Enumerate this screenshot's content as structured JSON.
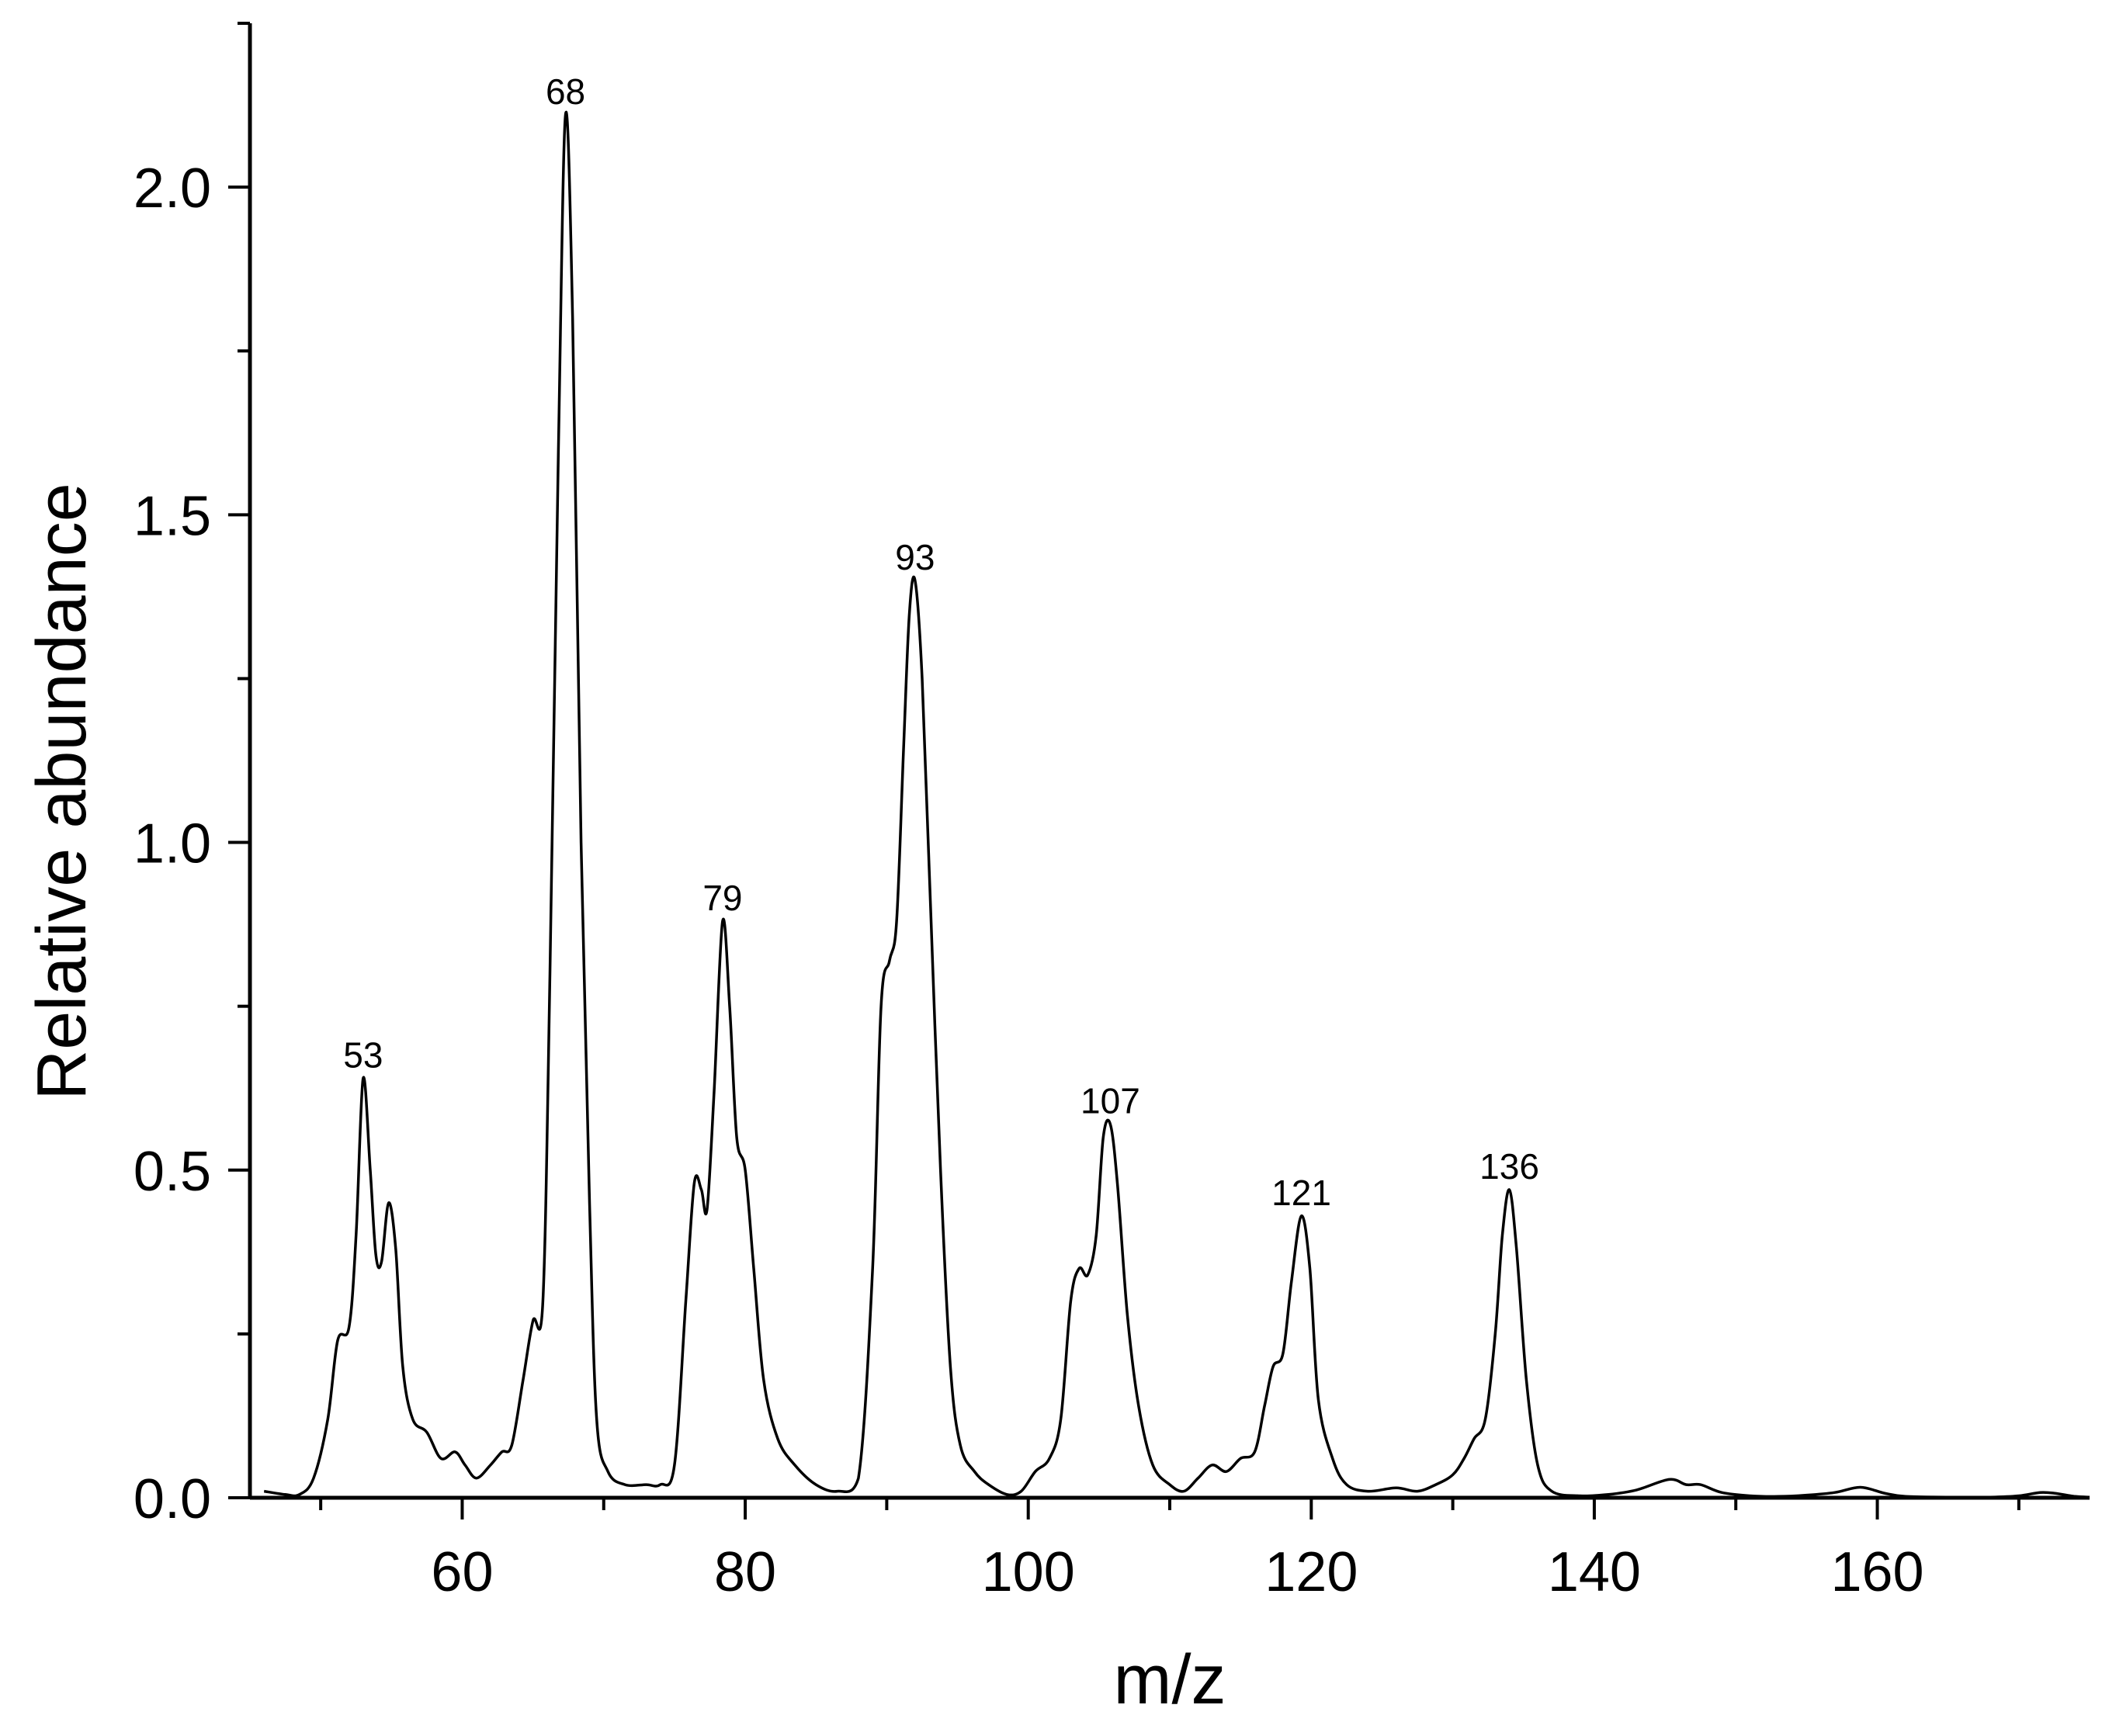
{
  "chart_data": {
    "type": "line",
    "title": "",
    "xlabel": "m/z",
    "ylabel": "Relative abundance",
    "xlim": [
      45,
      175
    ],
    "ylim": [
      0,
      2.25
    ],
    "x_major_ticks": [
      60,
      80,
      100,
      120,
      140,
      160
    ],
    "x_minor_ticks": [
      50,
      70,
      90,
      110,
      130,
      150,
      170
    ],
    "y_major_ticks": [
      0.0,
      0.5,
      1.0,
      1.5,
      2.0
    ],
    "y_minor_ticks": [
      0.25,
      0.75,
      1.25,
      1.75,
      2.25
    ],
    "x_tick_labels": [
      "60",
      "80",
      "100",
      "120",
      "140",
      "160"
    ],
    "y_tick_labels": [
      "0.0",
      "0.5",
      "1.0",
      "1.5",
      "2.0"
    ],
    "grid": false,
    "legend": "none",
    "peak_labels": [
      {
        "text": "53",
        "x": 53,
        "y": 0.64
      },
      {
        "text": "68",
        "x": 67.3,
        "y": 2.11
      },
      {
        "text": "79",
        "x": 78.4,
        "y": 0.88
      },
      {
        "text": "93",
        "x": 92.0,
        "y": 1.4
      },
      {
        "text": "107",
        "x": 105.8,
        "y": 0.57
      },
      {
        "text": "121",
        "x": 119.3,
        "y": 0.43
      },
      {
        "text": "136",
        "x": 134.0,
        "y": 0.47
      }
    ],
    "series": [
      {
        "points": [
          [
            46,
            0.01
          ],
          [
            47.5,
            0.005
          ],
          [
            48.5,
            0.005
          ],
          [
            49.5,
            0.03
          ],
          [
            50.5,
            0.12
          ],
          [
            51.2,
            0.24
          ],
          [
            52.0,
            0.26
          ],
          [
            52.5,
            0.4
          ],
          [
            53.0,
            0.64
          ],
          [
            53.5,
            0.5
          ],
          [
            53.9,
            0.37
          ],
          [
            54.3,
            0.36
          ],
          [
            54.8,
            0.45
          ],
          [
            55.3,
            0.38
          ],
          [
            55.8,
            0.2
          ],
          [
            56.5,
            0.12
          ],
          [
            57.5,
            0.1
          ],
          [
            58.5,
            0.06
          ],
          [
            59.5,
            0.07
          ],
          [
            60.2,
            0.05
          ],
          [
            61.0,
            0.03
          ],
          [
            62.0,
            0.05
          ],
          [
            62.8,
            0.07
          ],
          [
            63.5,
            0.08
          ],
          [
            64.3,
            0.18
          ],
          [
            65.0,
            0.27
          ],
          [
            65.7,
            0.3
          ],
          [
            66.2,
            0.8
          ],
          [
            66.8,
            1.6
          ],
          [
            67.3,
            2.11
          ],
          [
            67.8,
            1.8
          ],
          [
            68.4,
            1.0
          ],
          [
            69.0,
            0.45
          ],
          [
            69.5,
            0.12
          ],
          [
            70.3,
            0.04
          ],
          [
            71.5,
            0.02
          ],
          [
            73.0,
            0.02
          ],
          [
            74.0,
            0.02
          ],
          [
            75.0,
            0.05
          ],
          [
            75.8,
            0.3
          ],
          [
            76.4,
            0.48
          ],
          [
            76.9,
            0.47
          ],
          [
            77.3,
            0.44
          ],
          [
            77.8,
            0.62
          ],
          [
            78.4,
            0.88
          ],
          [
            78.9,
            0.75
          ],
          [
            79.4,
            0.55
          ],
          [
            80.0,
            0.5
          ],
          [
            80.6,
            0.35
          ],
          [
            81.3,
            0.18
          ],
          [
            82.3,
            0.09
          ],
          [
            83.5,
            0.05
          ],
          [
            85.0,
            0.02
          ],
          [
            86.5,
            0.01
          ],
          [
            88.0,
            0.03
          ],
          [
            89.0,
            0.35
          ],
          [
            89.6,
            0.75
          ],
          [
            90.2,
            0.82
          ],
          [
            90.7,
            0.88
          ],
          [
            91.2,
            1.15
          ],
          [
            91.6,
            1.35
          ],
          [
            92.0,
            1.4
          ],
          [
            92.5,
            1.25
          ],
          [
            93.1,
            0.9
          ],
          [
            93.8,
            0.5
          ],
          [
            94.5,
            0.2
          ],
          [
            95.2,
            0.08
          ],
          [
            96.2,
            0.04
          ],
          [
            97.2,
            0.02
          ],
          [
            98.5,
            0.005
          ],
          [
            99.5,
            0.01
          ],
          [
            100.5,
            0.04
          ],
          [
            101.5,
            0.06
          ],
          [
            102.3,
            0.12
          ],
          [
            103.0,
            0.3
          ],
          [
            103.6,
            0.35
          ],
          [
            104.2,
            0.34
          ],
          [
            104.8,
            0.4
          ],
          [
            105.3,
            0.55
          ],
          [
            105.8,
            0.57
          ],
          [
            106.3,
            0.48
          ],
          [
            107.0,
            0.28
          ],
          [
            107.8,
            0.14
          ],
          [
            108.8,
            0.05
          ],
          [
            110.0,
            0.02
          ],
          [
            111.0,
            0.01
          ],
          [
            112.0,
            0.03
          ],
          [
            113.0,
            0.05
          ],
          [
            114.0,
            0.04
          ],
          [
            115.0,
            0.06
          ],
          [
            116.0,
            0.07
          ],
          [
            116.7,
            0.14
          ],
          [
            117.3,
            0.2
          ],
          [
            118.0,
            0.22
          ],
          [
            118.6,
            0.33
          ],
          [
            119.3,
            0.43
          ],
          [
            119.9,
            0.35
          ],
          [
            120.5,
            0.15
          ],
          [
            121.5,
            0.06
          ],
          [
            122.5,
            0.02
          ],
          [
            124.0,
            0.01
          ],
          [
            126.0,
            0.015
          ],
          [
            127.5,
            0.01
          ],
          [
            128.8,
            0.02
          ],
          [
            130.0,
            0.035
          ],
          [
            130.8,
            0.06
          ],
          [
            131.5,
            0.09
          ],
          [
            132.3,
            0.12
          ],
          [
            133.0,
            0.25
          ],
          [
            133.5,
            0.4
          ],
          [
            134.0,
            0.47
          ],
          [
            134.5,
            0.38
          ],
          [
            135.2,
            0.18
          ],
          [
            136.0,
            0.05
          ],
          [
            137.0,
            0.01
          ],
          [
            139.0,
            0.003
          ],
          [
            141.0,
            0.005
          ],
          [
            143.0,
            0.012
          ],
          [
            145.3,
            0.028
          ],
          [
            146.5,
            0.02
          ],
          [
            147.5,
            0.02
          ],
          [
            149.0,
            0.008
          ],
          [
            151.0,
            0.003
          ],
          [
            153.0,
            0.002
          ],
          [
            155.0,
            0.004
          ],
          [
            157.0,
            0.008
          ],
          [
            158.8,
            0.016
          ],
          [
            160.5,
            0.007
          ],
          [
            162.0,
            0.002
          ],
          [
            165.0,
            0.001
          ],
          [
            168.0,
            0.001
          ],
          [
            170.0,
            0.003
          ],
          [
            171.5,
            0.008
          ],
          [
            172.5,
            0.007
          ],
          [
            174.0,
            0.002
          ],
          [
            175.0,
            0.001
          ]
        ]
      }
    ]
  }
}
